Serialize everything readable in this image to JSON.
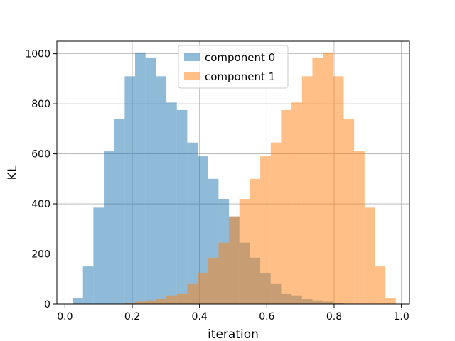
{
  "chart_data": {
    "type": "bar",
    "xlabel": "iteration",
    "ylabel": "KL",
    "xlim": [
      -0.024,
      1.024
    ],
    "ylim": [
      0,
      1050
    ],
    "xticks": [
      0.0,
      0.2,
      0.4,
      0.6,
      0.8,
      1.0
    ],
    "xtick_labels": [
      "0.0",
      "0.2",
      "0.4",
      "0.6",
      "0.8",
      "1.0"
    ],
    "yticks": [
      0,
      200,
      400,
      600,
      800,
      1000
    ],
    "ytick_labels": [
      "0",
      "200",
      "400",
      "600",
      "800",
      "1000"
    ],
    "grid": true,
    "legend_position": "top-center",
    "bin_edges": [
      0.0225,
      0.0535,
      0.0845,
      0.1155,
      0.1465,
      0.1775,
      0.2085,
      0.2395,
      0.2705,
      0.3015,
      0.3325,
      0.3635,
      0.3945,
      0.4255,
      0.4565,
      0.4875,
      0.5185,
      0.5495,
      0.5805,
      0.6115,
      0.6425,
      0.6735,
      0.7045,
      0.7355,
      0.7665,
      0.7975,
      0.8285,
      0.8595,
      0.8905,
      0.9215,
      0.9525,
      0.9835
    ],
    "series": [
      {
        "name": "component 0",
        "color": "#1f77b4",
        "alpha": 0.5,
        "values": [
          25,
          150,
          385,
          610,
          740,
          910,
          1005,
          985,
          910,
          805,
          775,
          645,
          590,
          500,
          420,
          350,
          245,
          185,
          125,
          80,
          40,
          35,
          20,
          15,
          10,
          5,
          0,
          0,
          0,
          0,
          0
        ]
      },
      {
        "name": "component 1",
        "color": "#ff7f0e",
        "alpha": 0.5,
        "values": [
          0,
          0,
          0,
          0,
          0,
          5,
          10,
          15,
          20,
          35,
          40,
          80,
          125,
          185,
          245,
          350,
          420,
          500,
          590,
          645,
          775,
          805,
          910,
          985,
          1005,
          910,
          740,
          610,
          385,
          150,
          25
        ]
      }
    ]
  }
}
